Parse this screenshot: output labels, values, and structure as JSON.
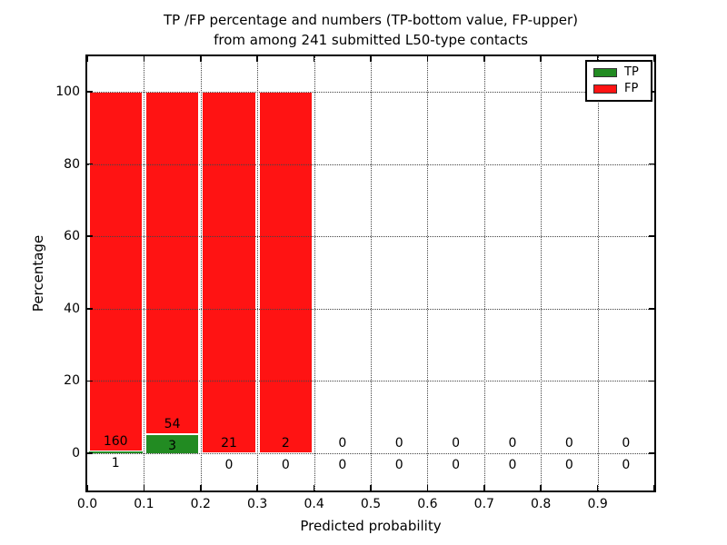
{
  "figure": {
    "title_line1": "TP /FP percentage and numbers (TP-bottom value, FP-upper)",
    "title_line2": "from among 241 submitted L50-type contacts"
  },
  "axes": {
    "xlabel": "Predicted probability",
    "ylabel": "Percentage",
    "xtick_labels": [
      "0.0",
      "0.1",
      "0.2",
      "0.3",
      "0.4",
      "0.5",
      "0.6",
      "0.7",
      "0.8",
      "0.9"
    ],
    "ytick_values": [
      0,
      20,
      40,
      60,
      80,
      100
    ],
    "xlim": [
      0.0,
      1.0
    ],
    "ylim": [
      -10.3,
      109.8
    ],
    "grid": true,
    "grid_linestyle": "dotted"
  },
  "legend": {
    "position": "upper right",
    "items": [
      {
        "label": "TP",
        "color": "#228B22"
      },
      {
        "label": "FP",
        "color": "#FF1313"
      }
    ]
  },
  "chart_data": {
    "type": "bar",
    "stacked": true,
    "title": "TP /FP percentage and numbers (TP-bottom value, FP-upper) from among 241 submitted L50-type contacts",
    "xlabel": "Predicted probability",
    "ylabel": "Percentage",
    "total_contacts": 241,
    "bin_edges": [
      0.0,
      0.1,
      0.2,
      0.3,
      0.4,
      0.5,
      0.6,
      0.7,
      0.8,
      0.9,
      1.0
    ],
    "bin_centers": [
      0.05,
      0.15,
      0.25,
      0.35,
      0.45,
      0.55,
      0.65,
      0.75,
      0.85,
      0.95
    ],
    "series": [
      {
        "name": "TP",
        "color": "#228B22",
        "counts": [
          1,
          3,
          0,
          0,
          0,
          0,
          0,
          0,
          0,
          0
        ],
        "pct": [
          0.62,
          5.26,
          0,
          0,
          0,
          0,
          0,
          0,
          0,
          0
        ]
      },
      {
        "name": "FP",
        "color": "#FF1313",
        "counts": [
          160,
          54,
          21,
          2,
          0,
          0,
          0,
          0,
          0,
          0
        ],
        "pct": [
          99.38,
          94.74,
          100,
          100,
          0,
          0,
          0,
          0,
          0,
          0
        ]
      }
    ],
    "label_convention": "FP count shown above TP-bar top, TP count shown below TP-bar top",
    "xlim": [
      0.0,
      1.0
    ],
    "ylim": [
      -10.3,
      109.8
    ],
    "grid": "dotted, both axes, drawn over bars"
  }
}
